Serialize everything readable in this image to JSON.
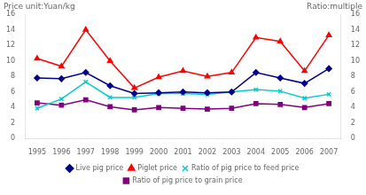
{
  "chart_data": {
    "type": "line",
    "ylabel": "Price unit:Yuan/kg",
    "y2label": "Ratio:multiple",
    "x": [
      1995,
      1996,
      1997,
      1998,
      1999,
      2000,
      2001,
      2002,
      2003,
      2004,
      2005,
      2006,
      2007
    ],
    "xlim": [
      1994.5,
      2007.5
    ],
    "xticks": [
      1995,
      1996,
      1997,
      1998,
      1999,
      2000,
      2001,
      2002,
      2003,
      2004,
      2005,
      2006,
      2007
    ],
    "ylim": [
      0,
      16
    ],
    "yticks": [
      0,
      2,
      4,
      6,
      8,
      10,
      12,
      14,
      16
    ],
    "y2lim": [
      0,
      16
    ],
    "y2ticks": [
      0,
      2,
      4,
      6,
      8,
      10,
      12,
      14,
      16
    ],
    "grid": false,
    "legend": "bottom",
    "series": [
      {
        "name": "Live pig price",
        "color": "#00008B",
        "marker": "diamond",
        "values": [
          7.8,
          7.7,
          8.5,
          6.8,
          5.8,
          5.9,
          6.0,
          5.9,
          6.0,
          8.5,
          7.8,
          7.1,
          9.0
        ]
      },
      {
        "name": "Piglet price",
        "color": "#FF0000",
        "marker": "triangle",
        "values": [
          10.3,
          9.3,
          14.0,
          10.0,
          6.5,
          7.9,
          8.7,
          8.0,
          8.5,
          13.0,
          12.5,
          8.7,
          13.3
        ]
      },
      {
        "name": "Ratio of pig price to feed price",
        "color": "#00CCCC",
        "marker": "x",
        "values": [
          3.9,
          5.1,
          7.3,
          5.3,
          5.3,
          5.8,
          5.8,
          5.7,
          6.0,
          6.3,
          6.1,
          5.2,
          5.7
        ]
      },
      {
        "name": "Ratio of pig price to grain price",
        "color": "#800080",
        "marker": "square",
        "values": [
          4.6,
          4.3,
          5.0,
          4.1,
          3.7,
          4.0,
          3.9,
          3.8,
          3.9,
          4.5,
          4.4,
          4.0,
          4.5
        ]
      }
    ]
  }
}
